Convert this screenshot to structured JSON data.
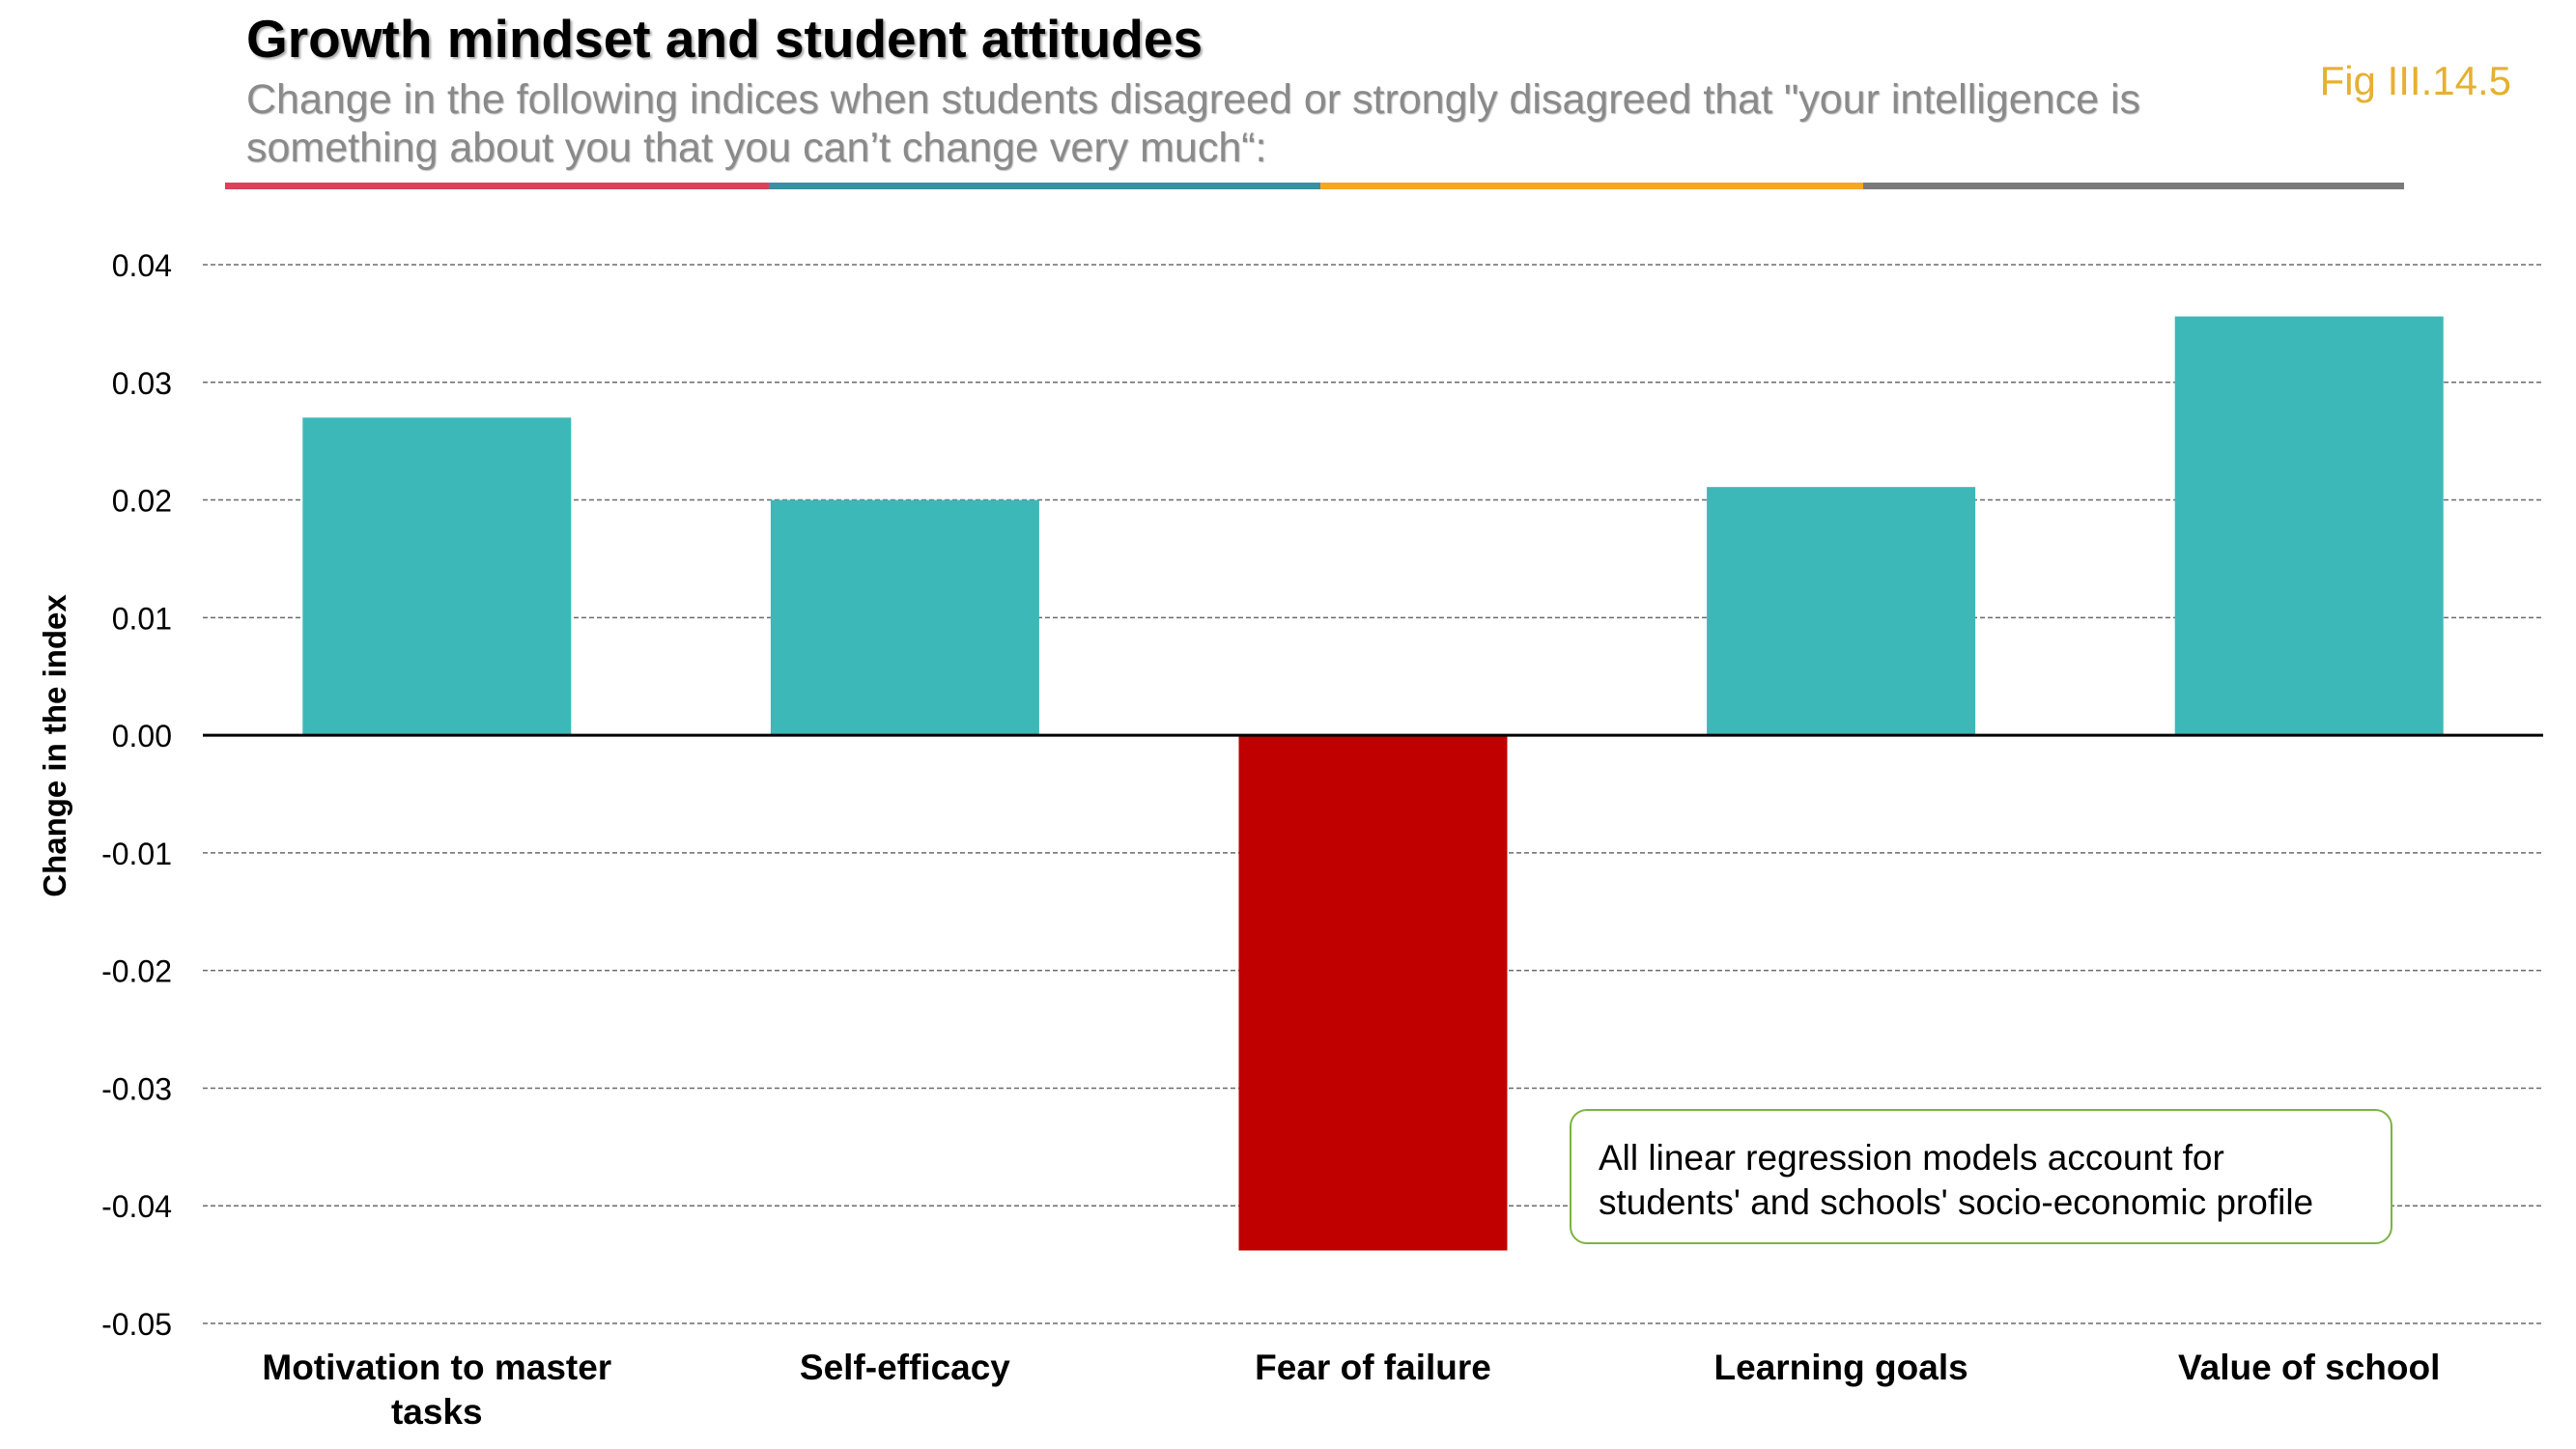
{
  "header": {
    "title": "Growth mindset and student attitudes",
    "subtitle": "Change in the following indices when students disagreed or strongly disagreed that \"your intelligence is something about you that you can’t change very much“:",
    "figure_label": "Fig III.14.5"
  },
  "color_strip": [
    "#d9425a",
    "#3a8fa2",
    "#f5a623",
    "#7a7a7a"
  ],
  "annotation": {
    "text": "All linear regression models account for students' and schools' socio-economic profile"
  },
  "colors": {
    "positive_bar": "#3db8b8",
    "negative_bar": "#c00000",
    "annotation_border": "#7cb342",
    "figure_label": "#e6b030"
  },
  "chart_data": {
    "type": "bar",
    "title": "",
    "xlabel": "",
    "ylabel": "Change in the index",
    "categories": [
      "Motivation to master tasks",
      "Self-efficacy",
      "Fear of failure",
      "Learning goals",
      "Value of school"
    ],
    "category_lines": [
      [
        "Motivation to master",
        "tasks"
      ],
      [
        "Self-efficacy"
      ],
      [
        "Fear of failure"
      ],
      [
        "Learning goals"
      ],
      [
        "Value of school"
      ]
    ],
    "values": [
      0.027,
      0.02,
      -0.0438,
      0.0211,
      0.0356
    ],
    "ylim": [
      -0.05,
      0.04
    ],
    "yticks": [
      0.04,
      0.03,
      0.02,
      0.01,
      0.0,
      -0.01,
      -0.02,
      -0.03,
      -0.04,
      -0.05
    ],
    "ytick_labels": [
      "0.04",
      "0.03",
      "0.02",
      "0.01",
      "0.00",
      "-0.01",
      "-0.02",
      "-0.03",
      "-0.04",
      "-0.05"
    ],
    "grid": "horizontal dashed",
    "legend": "none"
  }
}
